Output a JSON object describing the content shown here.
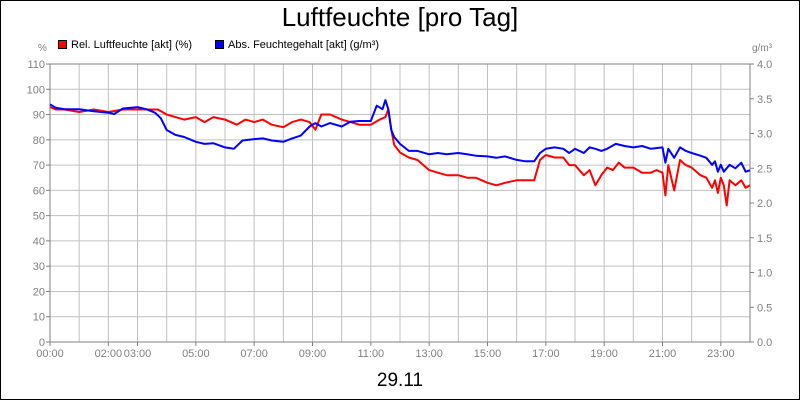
{
  "chart_data": {
    "type": "line",
    "title": "Luftfeuchte [pro Tag]",
    "xlabel": "29.11",
    "ylabel_left": "%",
    "ylabel_right": "g/m³",
    "ylim_left": [
      0,
      110
    ],
    "ylim_right": [
      0.0,
      4.0
    ],
    "grid": true,
    "legend_position": "top-left",
    "x_tick_labels": [
      "00:00",
      "02:00",
      "03:00",
      "05:00",
      "07:00",
      "09:00",
      "11:00",
      "13:00",
      "15:00",
      "17:00",
      "19:00",
      "21:00",
      "23:00"
    ],
    "x_tick_hours": [
      0,
      2,
      3,
      5,
      7,
      9,
      11,
      13,
      15,
      17,
      19,
      21,
      23
    ],
    "y_left_ticks": [
      0,
      10,
      20,
      30,
      40,
      50,
      60,
      70,
      80,
      90,
      100,
      110
    ],
    "y_right_ticks": [
      "0.0",
      "0.5",
      "1.0",
      "1.5",
      "2.0",
      "2.5",
      "3.0",
      "3.5",
      "4.0"
    ],
    "series": [
      {
        "name": "Rel. Luftfeuchte [akt] (%)",
        "axis": "left",
        "color": "#ff0000",
        "points": [
          [
            0.0,
            93
          ],
          [
            0.2,
            92
          ],
          [
            0.5,
            92
          ],
          [
            1.0,
            91
          ],
          [
            1.5,
            92
          ],
          [
            2.0,
            91
          ],
          [
            2.5,
            92
          ],
          [
            3.0,
            92
          ],
          [
            3.3,
            92
          ],
          [
            3.7,
            92
          ],
          [
            4.0,
            90
          ],
          [
            4.3,
            89
          ],
          [
            4.6,
            88
          ],
          [
            5.0,
            89
          ],
          [
            5.3,
            87
          ],
          [
            5.6,
            89
          ],
          [
            6.0,
            88
          ],
          [
            6.2,
            87
          ],
          [
            6.4,
            86
          ],
          [
            6.7,
            88
          ],
          [
            7.0,
            87
          ],
          [
            7.3,
            88
          ],
          [
            7.6,
            86
          ],
          [
            8.0,
            85
          ],
          [
            8.3,
            87
          ],
          [
            8.6,
            88
          ],
          [
            8.9,
            87
          ],
          [
            9.1,
            84
          ],
          [
            9.3,
            90
          ],
          [
            9.6,
            90
          ],
          [
            10.0,
            88
          ],
          [
            10.3,
            87
          ],
          [
            10.6,
            86
          ],
          [
            11.0,
            86
          ],
          [
            11.3,
            88
          ],
          [
            11.5,
            89
          ],
          [
            11.6,
            92
          ],
          [
            11.7,
            84
          ],
          [
            11.8,
            78
          ],
          [
            12.0,
            75
          ],
          [
            12.3,
            73
          ],
          [
            12.6,
            72
          ],
          [
            13.0,
            68
          ],
          [
            13.3,
            67
          ],
          [
            13.6,
            66
          ],
          [
            14.0,
            66
          ],
          [
            14.3,
            65
          ],
          [
            14.6,
            65
          ],
          [
            15.0,
            63
          ],
          [
            15.3,
            62
          ],
          [
            15.6,
            63
          ],
          [
            16.0,
            64
          ],
          [
            16.3,
            64
          ],
          [
            16.6,
            64
          ],
          [
            16.8,
            72
          ],
          [
            17.0,
            74
          ],
          [
            17.3,
            73
          ],
          [
            17.6,
            73
          ],
          [
            17.8,
            70
          ],
          [
            18.0,
            70
          ],
          [
            18.3,
            66
          ],
          [
            18.5,
            68
          ],
          [
            18.7,
            62
          ],
          [
            18.9,
            66
          ],
          [
            19.1,
            69
          ],
          [
            19.3,
            68
          ],
          [
            19.5,
            71
          ],
          [
            19.7,
            69
          ],
          [
            20.0,
            69
          ],
          [
            20.3,
            67
          ],
          [
            20.6,
            67
          ],
          [
            20.8,
            68
          ],
          [
            21.0,
            67
          ],
          [
            21.1,
            58
          ],
          [
            21.2,
            70
          ],
          [
            21.4,
            60
          ],
          [
            21.6,
            72
          ],
          [
            21.8,
            70
          ],
          [
            22.0,
            69
          ],
          [
            22.3,
            66
          ],
          [
            22.5,
            65
          ],
          [
            22.7,
            61
          ],
          [
            22.8,
            64
          ],
          [
            22.9,
            59
          ],
          [
            23.0,
            65
          ],
          [
            23.1,
            62
          ],
          [
            23.2,
            54
          ],
          [
            23.3,
            64
          ],
          [
            23.5,
            62
          ],
          [
            23.7,
            64
          ],
          [
            23.85,
            61
          ],
          [
            24.0,
            62
          ]
        ]
      },
      {
        "name": "Abs. Feuchtegehalt [akt] (g/m³)",
        "axis": "right",
        "color": "#0000ff",
        "points": [
          [
            0.0,
            3.42
          ],
          [
            0.2,
            3.37
          ],
          [
            0.5,
            3.35
          ],
          [
            1.0,
            3.35
          ],
          [
            1.5,
            3.32
          ],
          [
            2.0,
            3.3
          ],
          [
            2.2,
            3.28
          ],
          [
            2.5,
            3.36
          ],
          [
            3.0,
            3.38
          ],
          [
            3.3,
            3.35
          ],
          [
            3.6,
            3.3
          ],
          [
            3.8,
            3.22
          ],
          [
            4.0,
            3.05
          ],
          [
            4.3,
            2.98
          ],
          [
            4.6,
            2.95
          ],
          [
            5.0,
            2.88
          ],
          [
            5.3,
            2.85
          ],
          [
            5.6,
            2.86
          ],
          [
            6.0,
            2.8
          ],
          [
            6.3,
            2.78
          ],
          [
            6.6,
            2.9
          ],
          [
            7.0,
            2.92
          ],
          [
            7.3,
            2.93
          ],
          [
            7.6,
            2.9
          ],
          [
            8.0,
            2.88
          ],
          [
            8.3,
            2.93
          ],
          [
            8.6,
            2.97
          ],
          [
            8.9,
            3.1
          ],
          [
            9.1,
            3.15
          ],
          [
            9.3,
            3.1
          ],
          [
            9.6,
            3.15
          ],
          [
            10.0,
            3.1
          ],
          [
            10.3,
            3.17
          ],
          [
            10.6,
            3.18
          ],
          [
            11.0,
            3.18
          ],
          [
            11.2,
            3.4
          ],
          [
            11.4,
            3.35
          ],
          [
            11.5,
            3.48
          ],
          [
            11.6,
            3.35
          ],
          [
            11.7,
            3.05
          ],
          [
            11.8,
            2.95
          ],
          [
            12.0,
            2.85
          ],
          [
            12.3,
            2.75
          ],
          [
            12.6,
            2.75
          ],
          [
            13.0,
            2.7
          ],
          [
            13.3,
            2.72
          ],
          [
            13.6,
            2.7
          ],
          [
            14.0,
            2.72
          ],
          [
            14.3,
            2.7
          ],
          [
            14.6,
            2.68
          ],
          [
            15.0,
            2.67
          ],
          [
            15.3,
            2.65
          ],
          [
            15.6,
            2.67
          ],
          [
            16.0,
            2.62
          ],
          [
            16.3,
            2.6
          ],
          [
            16.6,
            2.6
          ],
          [
            16.8,
            2.72
          ],
          [
            17.0,
            2.78
          ],
          [
            17.3,
            2.8
          ],
          [
            17.6,
            2.78
          ],
          [
            17.8,
            2.72
          ],
          [
            18.0,
            2.78
          ],
          [
            18.3,
            2.72
          ],
          [
            18.5,
            2.8
          ],
          [
            18.7,
            2.78
          ],
          [
            18.9,
            2.75
          ],
          [
            19.1,
            2.78
          ],
          [
            19.4,
            2.85
          ],
          [
            19.7,
            2.82
          ],
          [
            20.0,
            2.8
          ],
          [
            20.3,
            2.82
          ],
          [
            20.6,
            2.78
          ],
          [
            21.0,
            2.8
          ],
          [
            21.1,
            2.58
          ],
          [
            21.2,
            2.78
          ],
          [
            21.4,
            2.65
          ],
          [
            21.6,
            2.8
          ],
          [
            21.8,
            2.75
          ],
          [
            22.0,
            2.72
          ],
          [
            22.3,
            2.68
          ],
          [
            22.5,
            2.65
          ],
          [
            22.7,
            2.55
          ],
          [
            22.8,
            2.6
          ],
          [
            22.9,
            2.45
          ],
          [
            23.0,
            2.55
          ],
          [
            23.1,
            2.45
          ],
          [
            23.3,
            2.55
          ],
          [
            23.5,
            2.5
          ],
          [
            23.7,
            2.58
          ],
          [
            23.85,
            2.45
          ],
          [
            24.0,
            2.47
          ]
        ]
      }
    ]
  }
}
